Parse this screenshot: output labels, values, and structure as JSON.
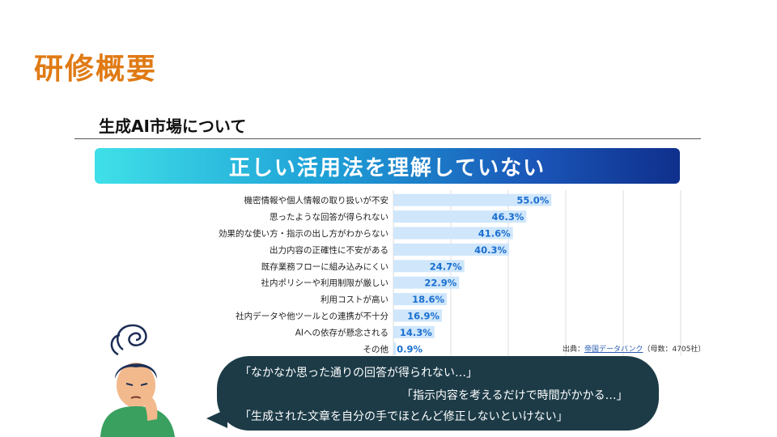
{
  "page": {
    "title": "研修概要",
    "section_title": "生成AI市場について",
    "banner": "正しい活用法を理解していない"
  },
  "source": {
    "prefix": "出典：",
    "link": "帝国データバンク",
    "suffix": "（母数：4705社）"
  },
  "bubble": {
    "lines": [
      "「なかなか思った通りの回答が得られない…」",
      "「指示内容を考えるだけで時間がかかる…」",
      "「生成された文章を自分の手でほとんど修正しないといけない」"
    ]
  },
  "chart_data": {
    "type": "bar",
    "orientation": "horizontal",
    "categories": [
      "機密情報や個人情報の取り扱いが不安",
      "思ったような回答が得られない",
      "効果的な使い方・指示の出し方がわからない",
      "出力内容の正確性に不安がある",
      "既存業務フローに組み込みにくい",
      "社内ポリシーや利用制限が厳しい",
      "利用コストが高い",
      "社内データや他ツールとの連携が不十分",
      "AIへの依存が懸念される",
      "その他"
    ],
    "values": [
      55.0,
      46.3,
      41.6,
      40.3,
      24.7,
      22.9,
      18.6,
      16.9,
      14.3,
      0.9
    ],
    "value_labels": [
      "55.0%",
      "46.3%",
      "41.6%",
      "40.3%",
      "24.7%",
      "22.9%",
      "18.6%",
      "16.9%",
      "14.3%",
      "0.9%"
    ],
    "xlim": [
      0,
      100
    ],
    "grid": true,
    "bar_color": "#cfe6fb",
    "label_color": "#1a6fd0"
  }
}
